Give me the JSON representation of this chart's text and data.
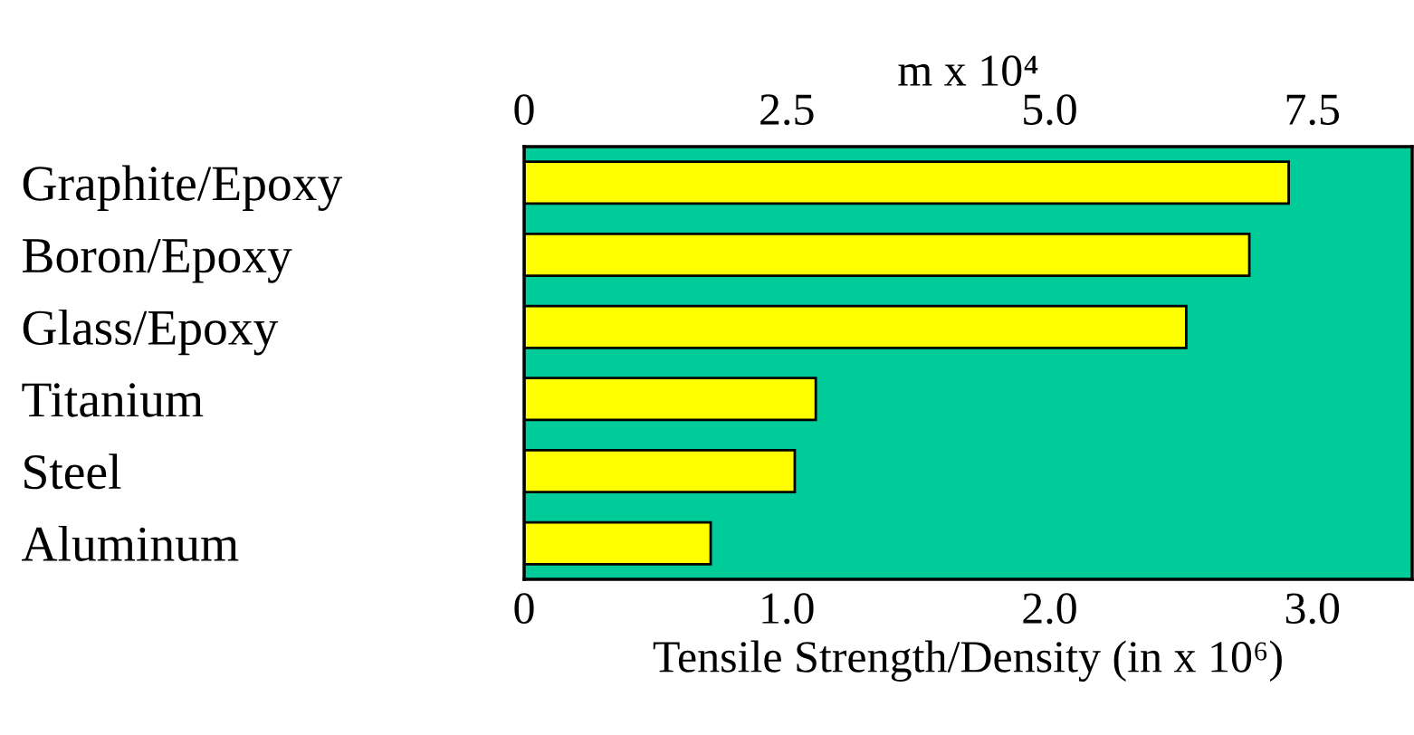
{
  "chart_data": {
    "type": "bar",
    "orientation": "horizontal",
    "categories": [
      "Graphite/Epoxy",
      "Boron/Epoxy",
      "Glass/Epoxy",
      "Titanium",
      "Steel",
      "Aluminum"
    ],
    "values": [
      2.91,
      2.76,
      2.52,
      1.11,
      1.03,
      0.71
    ],
    "color": "#ffff00",
    "xlim": [
      0,
      3.38
    ],
    "xticks": [
      0,
      {
        "value": 1,
        "label": "1.0"
      },
      {
        "value": 2,
        "label": "2.0"
      },
      {
        "value": 3,
        "label": "3.0"
      }
    ],
    "x2lim": [
      0,
      8.45
    ],
    "x2ticks": [
      0,
      2.5,
      {
        "value": 5,
        "label": "5.0"
      },
      7.5
    ],
    "xlabel": "Tensile Strength/Density (in x 10⁶)",
    "x2label": "m x 10⁴",
    "grid": false,
    "legend": false
  }
}
